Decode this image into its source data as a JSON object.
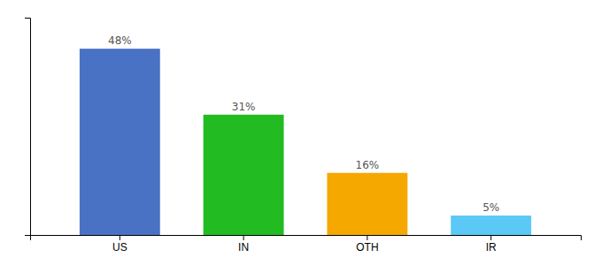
{
  "chart_data": {
    "type": "bar",
    "categories": [
      "US",
      "IN",
      "OTH",
      "IR"
    ],
    "values": [
      48,
      31,
      16,
      5
    ],
    "value_labels": [
      "48%",
      "31%",
      "16%",
      "5%"
    ],
    "colors": [
      "#4a72c4",
      "#22bb22",
      "#f5a800",
      "#5bc8f5"
    ],
    "ylim": [
      0,
      56
    ],
    "grid": false,
    "data_labels": true,
    "tick_labels": "x"
  }
}
